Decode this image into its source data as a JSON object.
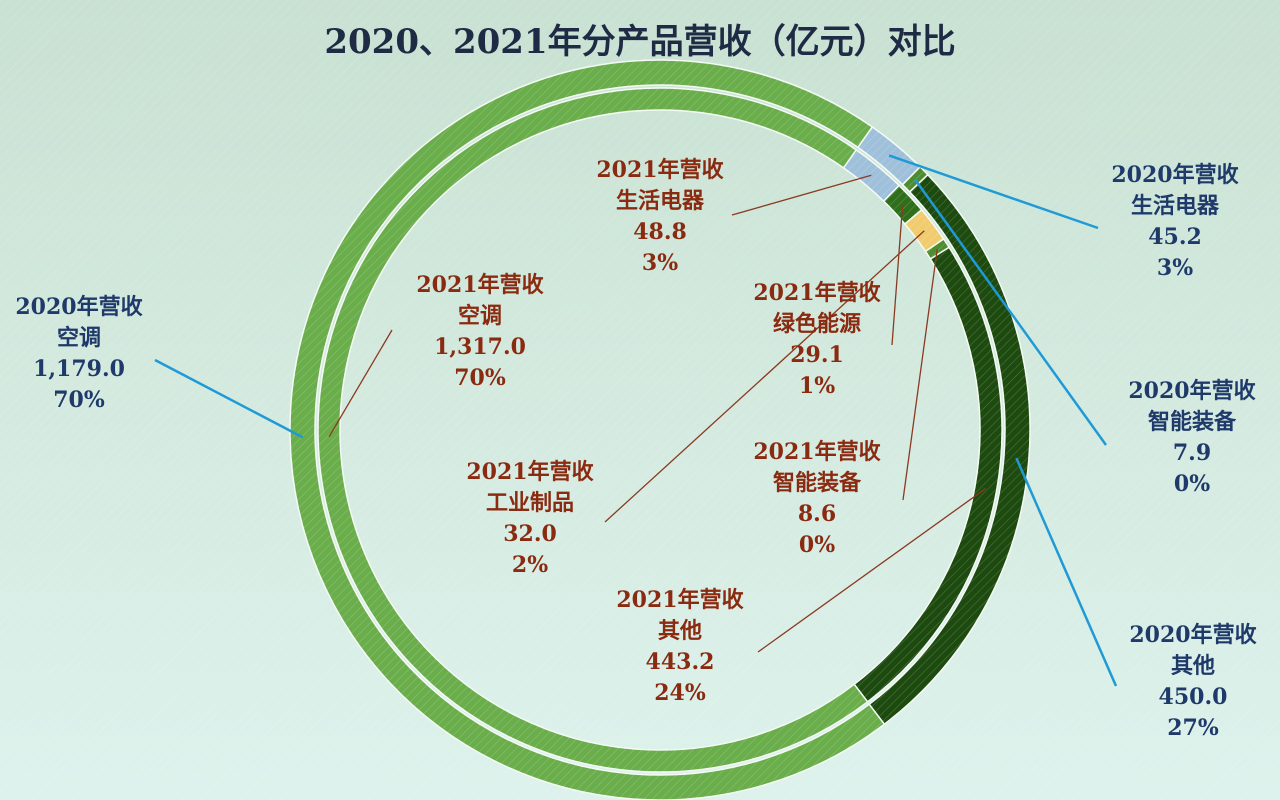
{
  "chart_data": {
    "type": "donut",
    "title": "2020、2021年分产品营收（亿元）对比",
    "start_category": "生活电器",
    "categories": [
      "空调",
      "生活电器",
      "绿色能源",
      "工业制品",
      "智能装备",
      "其他"
    ],
    "colors": {
      "空调": "#6aad4b",
      "生活电器": "#9fc0da",
      "绿色能源": "#2f6f1c",
      "工业制品": "#f0cc6e",
      "智能装备": "#4e8c30",
      "其他": "#1d4a0e"
    },
    "series": [
      {
        "name": "2020年营收",
        "ring": "outer",
        "data": [
          {
            "category": "空调",
            "value": 1179.0,
            "value_label": "1,179.0",
            "pct_label": "70%"
          },
          {
            "category": "生活电器",
            "value": 45.2,
            "value_label": "45.2",
            "pct_label": "3%"
          },
          {
            "category": "智能装备",
            "value": 7.9,
            "value_label": "7.9",
            "pct_label": "0%"
          },
          {
            "category": "其他",
            "value": 450.0,
            "value_label": "450.0",
            "pct_label": "27%"
          }
        ]
      },
      {
        "name": "2021年营收",
        "ring": "inner",
        "data": [
          {
            "category": "空调",
            "value": 1317.0,
            "value_label": "1,317.0",
            "pct_label": "70%"
          },
          {
            "category": "生活电器",
            "value": 48.8,
            "value_label": "48.8",
            "pct_label": "3%"
          },
          {
            "category": "绿色能源",
            "value": 29.1,
            "value_label": "29.1",
            "pct_label": "1%"
          },
          {
            "category": "工业制品",
            "value": 32.0,
            "value_label": "32.0",
            "pct_label": "2%"
          },
          {
            "category": "智能装备",
            "value": 8.6,
            "value_label": "8.6",
            "pct_label": "0%"
          },
          {
            "category": "其他",
            "value": 443.2,
            "value_label": "443.2",
            "pct_label": "24%"
          }
        ]
      }
    ]
  }
}
